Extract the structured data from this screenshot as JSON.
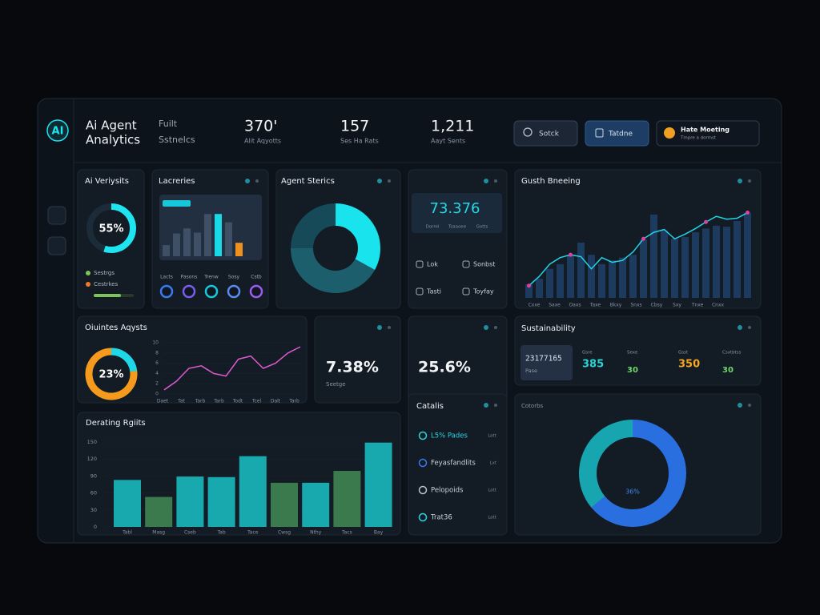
{
  "header": {
    "logo": "AI",
    "title": [
      "Ai Agent",
      "Analytics"
    ],
    "subtitle": [
      "Fuilt",
      "Sstnelcs"
    ],
    "stats": [
      {
        "value": "370'",
        "label": "Alit Aqyotts"
      },
      {
        "value": "157",
        "label": "Ses Ha Rats"
      },
      {
        "value": "1,211",
        "label": "Aayt Sents"
      }
    ],
    "search": "Sotck",
    "button": "Tatdne",
    "notice": {
      "title": "Hate Moeting",
      "text": "Tmpre a dormst"
    }
  },
  "cards": {
    "verity": {
      "title": "Ai Veriysits",
      "ring": {
        "value": 55,
        "label": "55%",
        "color": "#1ee3f0"
      },
      "legend": [
        {
          "label": "Sestrgs",
          "color": "#7cc35a"
        },
        {
          "label": "Cestrkes",
          "color": "#f07a2a"
        }
      ]
    },
    "queries": {
      "title": "Lacreries",
      "ylim": [
        0,
        10
      ],
      "values": [
        2.4,
        4.9,
        6,
        5.1,
        9.1,
        9.1,
        7.3,
        2.9
      ],
      "colors": [
        "#3f4f66",
        "#3f4f66",
        "#3f4f66",
        "#3f4f66",
        "#3f4f66",
        "#19d9e6",
        "#3f4f66",
        "#f0901e"
      ],
      "gauges": [
        "Lacts",
        "Pasons",
        "Trenw",
        "Sosy",
        "Cstb"
      ]
    },
    "agent": {
      "title": "Agent Sterics",
      "segments": [
        {
          "value": 33,
          "color": "#19e3ec"
        },
        {
          "value": 42,
          "color": "#1d5e6c"
        },
        {
          "value": 25,
          "color": "#174a58"
        }
      ]
    },
    "metric": {
      "value": "73.376",
      "sublabels": [
        "Dorrel",
        "Tsaaoee",
        "Gotts"
      ],
      "items": [
        "Lok",
        "Sonbst",
        "Tasti",
        "Toyfay"
      ]
    },
    "growth": {
      "title": "Gusth Bneeing",
      "ylim": [
        0,
        100
      ],
      "bars": [
        14.5,
        20.5,
        31,
        36,
        46,
        59,
        46,
        36,
        40,
        43,
        46,
        62,
        89,
        72,
        63,
        65,
        70,
        74,
        77,
        76,
        82,
        91
      ],
      "line": [
        13,
        23,
        36,
        43,
        46,
        44,
        31,
        43,
        38,
        40,
        49,
        63,
        70,
        73,
        63,
        68,
        74,
        81,
        87,
        84,
        85,
        91
      ],
      "bar_color": "#1d3b5e",
      "line_color": "#22d3e6",
      "dot_color": "#e040a0",
      "x_labels": [
        "Cxxe",
        "Saxe",
        "Oaxs",
        "Taxe",
        "Bkxy",
        "Snxs",
        "Cbsy",
        "Sxy",
        "Tnxe",
        "Cnxx"
      ]
    },
    "outcomes": {
      "title": "Oiuintes Aqysts",
      "ring": {
        "value": 23,
        "label": "23%",
        "color": "#1ed8e8",
        "rest": "#f59a1c"
      },
      "ylim": [
        0,
        10
      ],
      "yticks": [
        0,
        2,
        4,
        6,
        8,
        10
      ],
      "line": [
        0.8,
        2.5,
        5,
        5.5,
        4,
        3.5,
        6.8,
        7.4,
        5,
        6,
        8,
        9.2
      ],
      "line_color": "#e05bd0",
      "x_labels": [
        "Daet",
        "Tat",
        "Tarb",
        "Tarb",
        "Todt",
        "Tcel",
        "Dalt",
        "Tarb"
      ]
    },
    "kpi1": {
      "value": "7.38%",
      "label": "Seetge"
    },
    "kpi2": {
      "value": "25.6%"
    },
    "sustain": {
      "title": "Sustainability",
      "box": {
        "value": "23177165",
        "label": "Pase"
      },
      "stats": [
        {
          "label": "Gsre",
          "value": "385",
          "color": "#2ed3d3"
        },
        {
          "label": "Sexe",
          "value": "30",
          "color": "#6fd66a"
        },
        {
          "label": "Gsst",
          "value": "350",
          "color": "#f5a623"
        },
        {
          "label": "Csxtbtss",
          "value": "30",
          "color": "#6fd66a"
        }
      ]
    },
    "rating": {
      "title": "Derating Rgiits",
      "ylim": [
        0,
        150
      ],
      "yticks": [
        0,
        30,
        60,
        90,
        120,
        150
      ],
      "categories": [
        "Tabl",
        "Masg",
        "Cseb",
        "Tab",
        "Tace",
        "Cwsg",
        "Nthy",
        "Tacs",
        "Bay"
      ],
      "values": [
        83,
        53,
        89,
        88,
        125,
        78,
        78,
        99,
        149
      ],
      "colors": [
        "#17a9ad",
        "#3b7a4c",
        "#17a9ad",
        "#17a9ad",
        "#17a9ad",
        "#3b7a4c",
        "#17a9ad",
        "#3b7a4c",
        "#17a9ad"
      ]
    },
    "catalysts": {
      "title": "Catalis",
      "items": [
        {
          "label": "L5% Pades",
          "note": "Lott"
        },
        {
          "label": "Feyasfandlits",
          "note": "Lxt"
        },
        {
          "label": "Pelopoids",
          "note": "Lott"
        },
        {
          "label": "Trat36",
          "note": "Lott"
        }
      ]
    },
    "donut": {
      "title": "Cotorbs",
      "segments": [
        {
          "value": 64,
          "color": "#2a6fe0"
        },
        {
          "value": 36,
          "label": "36%",
          "color": "#17a5b0"
        }
      ]
    }
  }
}
